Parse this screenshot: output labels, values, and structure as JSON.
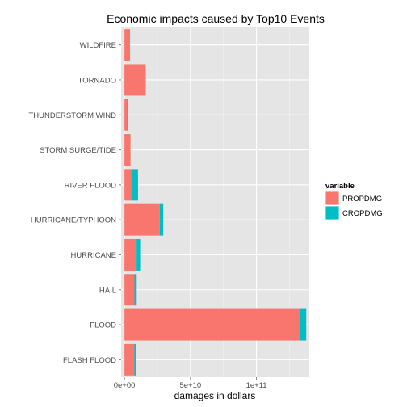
{
  "chart_data": {
    "type": "bar",
    "orientation": "horizontal",
    "stacked": true,
    "title": "Economic impacts caused by Top10 Events",
    "xlabel": "damages in dollars",
    "ylabel": "",
    "xlim": [
      -2500000000,
      140000000000
    ],
    "xticks": [
      {
        "value": 0,
        "label": "0e+00"
      },
      {
        "value": 50000000000,
        "label": "5e+10"
      },
      {
        "value": 100000000000,
        "label": "1e+11"
      }
    ],
    "categories": [
      "WILDFIRE",
      "TORNADO",
      "THUNDERSTORM WIND",
      "STORM SURGE/TIDE",
      "RIVER FLOOD",
      "HURRICANE/TYPHOON",
      "HURRICANE",
      "HAIL",
      "FLOOD",
      "FLASH FLOOD"
    ],
    "series": [
      {
        "name": "PROPDMG",
        "color": "#F8766D",
        "values": [
          4000000000,
          15700000000,
          1900000000,
          4600000000,
          5200000000,
          26700000000,
          9200000000,
          7600000000,
          133000000000,
          7500000000
        ]
      },
      {
        "name": "CROPDMG",
        "color": "#00BFC4",
        "values": [
          300000000,
          400000000,
          900000000,
          0,
          5100000000,
          2700000000,
          2700000000,
          1700000000,
          4700000000,
          1300000000
        ]
      }
    ],
    "legend": {
      "title": "variable",
      "position": "right"
    },
    "grid": true
  }
}
